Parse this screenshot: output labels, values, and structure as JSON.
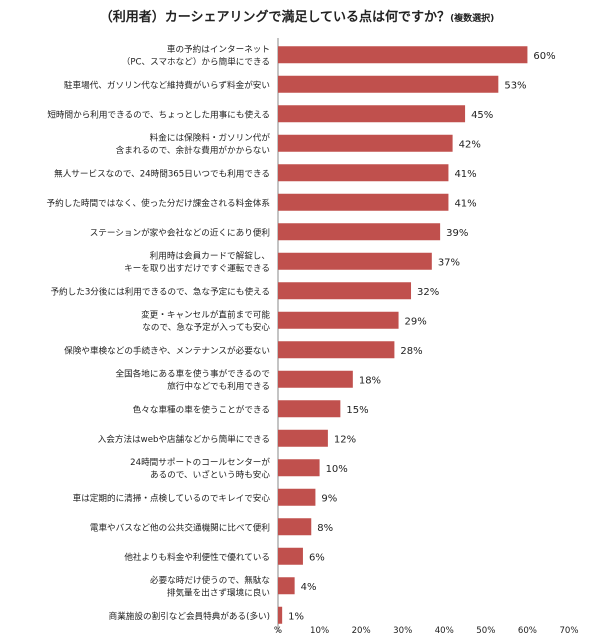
{
  "chart_data": {
    "type": "bar",
    "orientation": "horizontal",
    "title": "（利用者）カーシェアリングで満足している点は何ですか？",
    "title_note": "(複数選択)",
    "categories": [
      [
        "車の予約はインターネット",
        "（PC、スマホなど）から簡単にできる"
      ],
      [
        "駐車場代、ガソリン代など維持費がいらず料金が安い"
      ],
      [
        "短時間から利用できるので、ちょっとした用事にも使える"
      ],
      [
        "料金には保険料・ガソリン代が",
        "含まれるので、余計な費用がかからない"
      ],
      [
        "無人サービスなので、24時間365日いつでも利用できる"
      ],
      [
        "予約した時間ではなく、使った分だけ課金される料金体系"
      ],
      [
        "ステーションが家や会社などの近くにあり便利"
      ],
      [
        "利用時は会員カードで解錠し、",
        "キーを取り出すだけですぐ運転できる"
      ],
      [
        "予約した3分後には利用できるので、急な予定にも使える"
      ],
      [
        "変更・キャンセルが直前まで可能",
        "なので、急な予定が入っても安心"
      ],
      [
        "保険や車検などの手続きや、メンテナンスが必要ない"
      ],
      [
        "全国各地にある車を使う事ができるので",
        "旅行中などでも利用できる"
      ],
      [
        "色々な車種の車を使うことができる"
      ],
      [
        "入会方法はwebや店舗などから簡単にできる"
      ],
      [
        "24時間サポートのコールセンターが",
        "あるので、いざという時も安心"
      ],
      [
        "車は定期的に清掃・点検しているのでキレイで安心"
      ],
      [
        "電車やバスなど他の公共交通機関に比べて便利"
      ],
      [
        "他社よりも料金や利便性で優れている"
      ],
      [
        "必要な時だけ使うので、無駄な",
        "排気量を出さず環境に良い"
      ],
      [
        "商業施設の割引など会員特典がある(多い)"
      ]
    ],
    "values": [
      60,
      53,
      45,
      42,
      41,
      41,
      39,
      37,
      32,
      29,
      28,
      18,
      15,
      12,
      10,
      9,
      8,
      6,
      4,
      1
    ],
    "value_suffix": "%",
    "xlim": [
      0,
      70
    ],
    "xticks": [
      "%",
      "10%",
      "20%",
      "30%",
      "40%",
      "50%",
      "60%",
      "70%"
    ],
    "grid": false,
    "legend": "none",
    "bar_color": "#c0504d"
  }
}
